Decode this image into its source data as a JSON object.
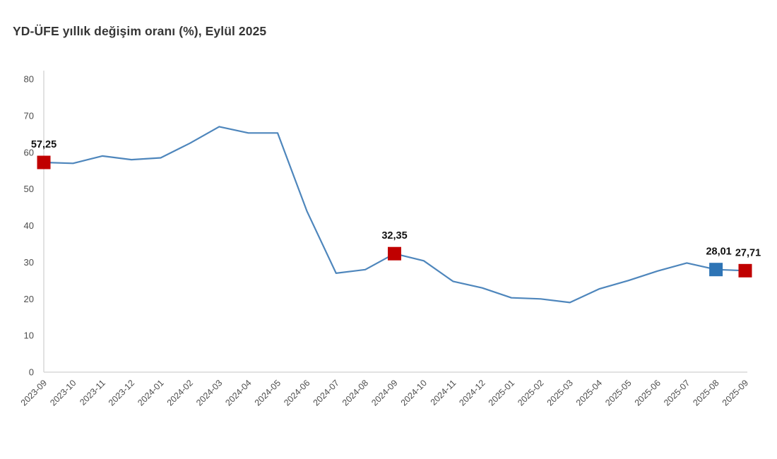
{
  "title": "YD-ÜFE yıllık değişim oranı (%), Eylül 2025",
  "colors": {
    "line": "#4e86bc",
    "marker_red": "#c00000",
    "marker_blue": "#2e74b5",
    "axis": "#d9d9d9",
    "tick_text": "#4d4d4d",
    "title_text": "#363636",
    "annotation_text": "#111111"
  },
  "chart_data": {
    "type": "line",
    "title": "YD-ÜFE yıllık değişim oranı (%), Eylül 2025",
    "xlabel": "",
    "ylabel": "",
    "x": [
      "2023-09",
      "2023-10",
      "2023-11",
      "2023-12",
      "2024-01",
      "2024-02",
      "2024-03",
      "2024-04",
      "2024-05",
      "2024-06",
      "2024-07",
      "2024-08",
      "2024-09",
      "2024-10",
      "2024-11",
      "2024-12",
      "2025-01",
      "2025-02",
      "2025-03",
      "2025-04",
      "2025-05",
      "2025-06",
      "2025-07",
      "2025-08",
      "2025-09"
    ],
    "values": [
      57.25,
      57.0,
      59.0,
      58.0,
      58.5,
      62.5,
      67.0,
      65.3,
      65.3,
      44.0,
      27.0,
      28.0,
      32.35,
      30.4,
      24.8,
      23.0,
      20.3,
      20.0,
      19.0,
      22.7,
      25.0,
      27.6,
      29.8,
      28.01,
      27.71
    ],
    "ylim": [
      0,
      80
    ],
    "y_ticks": [
      0,
      10,
      20,
      30,
      40,
      50,
      60,
      70,
      80
    ],
    "grid": false,
    "legend": "none",
    "markers": [
      {
        "x": "2023-09",
        "value": 57.25,
        "label": "57,25",
        "color": "red"
      },
      {
        "x": "2024-09",
        "value": 32.35,
        "label": "32,35",
        "color": "red"
      },
      {
        "x": "2025-08",
        "value": 28.01,
        "label": "28,01",
        "color": "blue"
      },
      {
        "x": "2025-09",
        "value": 27.71,
        "label": "27,71",
        "color": "red"
      }
    ]
  }
}
